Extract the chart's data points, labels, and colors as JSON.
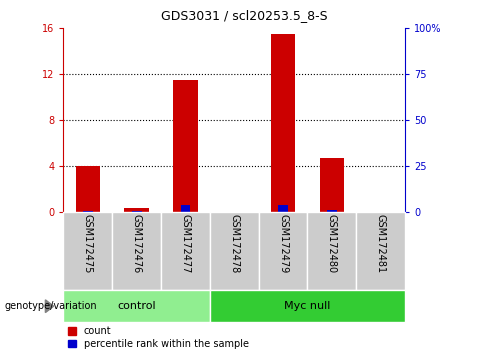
{
  "title": "GDS3031 / scl20253.5_8-S",
  "samples": [
    "GSM172475",
    "GSM172476",
    "GSM172477",
    "GSM172478",
    "GSM172479",
    "GSM172480",
    "GSM172481"
  ],
  "count_values": [
    4.0,
    0.4,
    11.5,
    0.0,
    15.5,
    4.7,
    0.0
  ],
  "percentile_values": [
    1.0,
    0.5,
    4.0,
    0.0,
    4.0,
    1.2,
    0.0
  ],
  "groups": [
    {
      "label": "control",
      "start": 0,
      "end": 3,
      "color": "#90ee90"
    },
    {
      "label": "Myc null",
      "start": 3,
      "end": 7,
      "color": "#00cc00"
    }
  ],
  "ylim_left": [
    0,
    16
  ],
  "ylim_right": [
    0,
    100
  ],
  "yticks_left": [
    0,
    4,
    8,
    12,
    16
  ],
  "yticks_right": [
    0,
    25,
    50,
    75,
    100
  ],
  "yticklabels_right": [
    "0",
    "25",
    "50",
    "75",
    "100%"
  ],
  "bar_color_red": "#cc0000",
  "bar_color_blue": "#0000cc",
  "background_xticklabel": "#cccccc",
  "group_color_light": "#90ee90",
  "group_color_dark": "#33cc33",
  "genotype_label": "genotype/variation",
  "legend_count": "count",
  "legend_percentile": "percentile rank within the sample",
  "bar_width": 0.5,
  "percentile_bar_width": 0.2
}
